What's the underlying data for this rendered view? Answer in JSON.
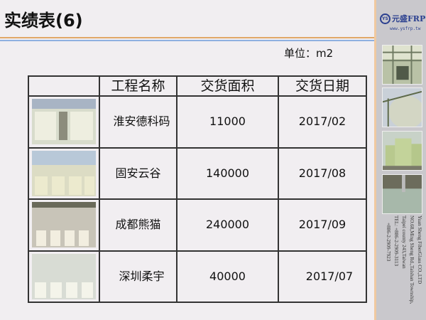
{
  "title": "实绩表(6)",
  "unit": "单位：m2",
  "logo": {
    "badge": "YS",
    "name": "元盛FRP",
    "url": "www.ysfrp.tw"
  },
  "company": {
    "lines": [
      "Yuan Sheng FiberGlass CO.,LTD",
      "NO.68,Ming Sheng Rd.,Taishan Township,",
      "Taipei county 243,Taiwan",
      "TEL: +886-2-2909-3113",
      "+886-2-2909-7923"
    ]
  },
  "table": {
    "headers": [
      "",
      "工程名称",
      "交货面积",
      "交货日期"
    ],
    "rows": [
      {
        "name": "淮安德科码",
        "area": "11000",
        "date": "2017/02"
      },
      {
        "name": "固安云谷",
        "area": "140000",
        "date": "2017/08"
      },
      {
        "name": "成都熊猫",
        "area": "240000",
        "date": "2017/09"
      },
      {
        "name": "深圳柔宇",
        "area": "40000",
        "date": "2017/07"
      }
    ]
  }
}
